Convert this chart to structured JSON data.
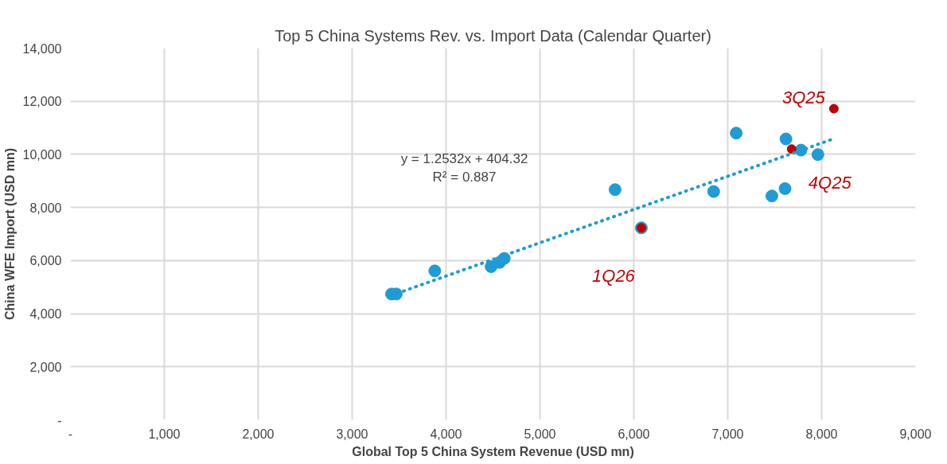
{
  "chart_data": {
    "type": "scatter",
    "title": "Top 5 China Systems Rev. vs. Import Data (Calendar Quarter)",
    "xlabel": "Global Top 5 China System Revenue (USD mn)",
    "ylabel": "China WFE Import (USD mn)",
    "series": [
      {
        "color": "#1f9bd7",
        "marker": "circle",
        "x": [
          3420,
          3470,
          3880,
          4480,
          4570,
          4620,
          5800,
          6080,
          6850,
          7090,
          7620,
          7780,
          7960,
          7470,
          7610
        ],
        "values": [
          4740,
          4740,
          5610,
          5770,
          5930,
          6080,
          8670,
          7230,
          8600,
          10800,
          10580,
          10160,
          9990,
          8430,
          8710
        ]
      },
      {
        "color": "#c00000",
        "marker": "circle",
        "x": [
          6080,
          7680,
          8130
        ],
        "values": [
          7230,
          10200,
          11720
        ]
      },
      {
        "type": "line",
        "color": "#1f9bd7",
        "line_style": "dotted",
        "x": [
          3420,
          8130
        ],
        "values": [
          4690,
          10590
        ]
      }
    ],
    "annotations": [
      "y = 1.2532x + 404.32",
      "R² = 0.887",
      {
        "text": "3Q25",
        "x": 8130,
        "y": 11720
      },
      {
        "text": "4Q25",
        "x": 7680,
        "y": 10200
      },
      {
        "text": "1Q26",
        "x": 6080,
        "y": 7230
      }
    ],
    "xlim": [
      0,
      9000
    ],
    "ylim": [
      0,
      14000
    ],
    "xticks": [
      {
        "value": 0,
        "label": "-"
      },
      {
        "value": 1000,
        "label": "1,000"
      },
      {
        "value": 2000,
        "label": "2,000"
      },
      {
        "value": 3000,
        "label": "3,000"
      },
      {
        "value": 4000,
        "label": "4,000"
      },
      {
        "value": 5000,
        "label": "5,000"
      },
      {
        "value": 6000,
        "label": "6,000"
      },
      {
        "value": 7000,
        "label": "7,000"
      },
      {
        "value": 8000,
        "label": "8,000"
      },
      {
        "value": 9000,
        "label": "9,000"
      }
    ],
    "yticks": [
      {
        "value": 0,
        "label": "-"
      },
      {
        "value": 2000,
        "label": "2,000"
      },
      {
        "value": 4000,
        "label": "4,000"
      },
      {
        "value": 6000,
        "label": "6,000"
      },
      {
        "value": 8000,
        "label": "8,000"
      },
      {
        "value": 10000,
        "label": "10,000"
      },
      {
        "value": 12000,
        "label": "12,000"
      },
      {
        "value": 14000,
        "label": "14,000"
      }
    ],
    "grid": true
  }
}
